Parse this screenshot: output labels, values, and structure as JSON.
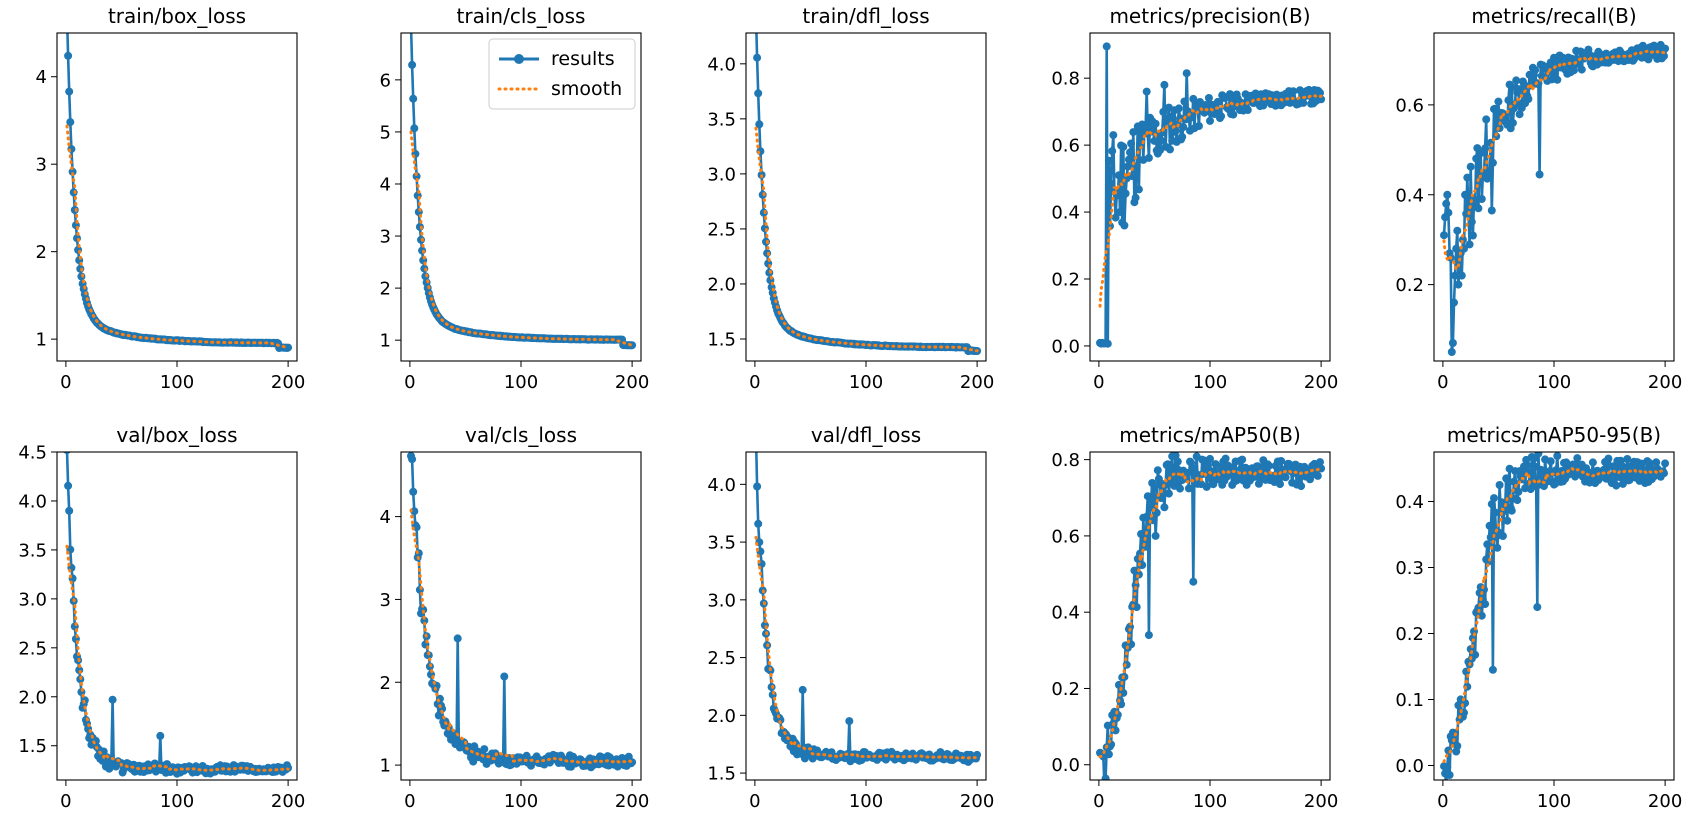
{
  "figure": {
    "legend_results": "results",
    "legend_smooth": "smooth"
  },
  "chart_data": [
    {
      "type": "line",
      "title": "train/box_loss",
      "xlim": [
        -8,
        208
      ],
      "ylim": [
        0.75,
        4.5
      ],
      "xticks": [
        0,
        100,
        200
      ],
      "xtick_labels": [
        "0",
        "100",
        "200"
      ],
      "yticks": [
        1,
        2,
        3,
        4
      ],
      "ytick_labels": [
        "1",
        "2",
        "3",
        "4"
      ],
      "gen": {
        "shape": "decay",
        "start": 4.4,
        "end": 0.95,
        "tail": 0.88,
        "k": 7,
        "noise": 0.008,
        "seed": 3
      },
      "legend": false
    },
    {
      "type": "line",
      "title": "train/cls_loss",
      "xlim": [
        -8,
        208
      ],
      "ylim": [
        0.6,
        6.9
      ],
      "xticks": [
        0,
        100,
        200
      ],
      "xtick_labels": [
        "0",
        "100",
        "200"
      ],
      "yticks": [
        1,
        2,
        3,
        4,
        5,
        6
      ],
      "ytick_labels": [
        "1",
        "2",
        "3",
        "4",
        "5",
        "6"
      ],
      "gen": {
        "shape": "decay",
        "start": 6.55,
        "end": 1.0,
        "tail": 0.86,
        "k": 7,
        "noise": 0.01,
        "seed": 5
      },
      "legend": true,
      "legend_position": "upper right"
    },
    {
      "type": "line",
      "title": "train/dfl_loss",
      "xlim": [
        -8,
        208
      ],
      "ylim": [
        1.3,
        4.28
      ],
      "xticks": [
        0,
        100,
        200
      ],
      "xtick_labels": [
        "0",
        "100",
        "200"
      ],
      "yticks": [
        1.5,
        2.0,
        2.5,
        3.0,
        3.5,
        4.0
      ],
      "ytick_labels": [
        "1.5",
        "2.0",
        "2.5",
        "3.0",
        "3.5",
        "4.0"
      ],
      "gen": {
        "shape": "decay",
        "start": 4.19,
        "end": 1.42,
        "tail": 1.38,
        "k": 7,
        "noise": 0.006,
        "seed": 7
      },
      "legend": false
    },
    {
      "type": "line",
      "title": "metrics/precision(B)",
      "xlim": [
        -8,
        208
      ],
      "ylim": [
        -0.045,
        0.935
      ],
      "xticks": [
        0,
        100,
        200
      ],
      "xtick_labels": [
        "0",
        "100",
        "200"
      ],
      "yticks": [
        0.0,
        0.2,
        0.4,
        0.6,
        0.8
      ],
      "ytick_labels": [
        "0.0",
        "0.2",
        "0.4",
        "0.6",
        "0.8"
      ],
      "gen": {
        "shape": "precision",
        "noise": 0.08,
        "seed": 11
      },
      "legend": false
    },
    {
      "type": "line",
      "title": "metrics/recall(B)",
      "xlim": [
        -8,
        208
      ],
      "ylim": [
        0.03,
        0.76
      ],
      "xticks": [
        0,
        100,
        200
      ],
      "xtick_labels": [
        "0",
        "100",
        "200"
      ],
      "yticks": [
        0.2,
        0.4,
        0.6
      ],
      "ytick_labels": [
        "0.2",
        "0.4",
        "0.6"
      ],
      "gen": {
        "shape": "recall",
        "noise": 0.05,
        "seed": 13
      },
      "legend": false
    },
    {
      "type": "line",
      "title": "val/box_loss",
      "xlim": [
        -8,
        208
      ],
      "ylim": [
        1.15,
        4.5
      ],
      "xticks": [
        0,
        100,
        200
      ],
      "xtick_labels": [
        "0",
        "100",
        "200"
      ],
      "yticks": [
        1.5,
        2.0,
        2.5,
        3.0,
        3.5,
        4.0,
        4.5
      ],
      "ytick_labels": [
        "1.5",
        "2.0",
        "2.5",
        "3.0",
        "3.5",
        "4.0",
        "4.5"
      ],
      "gen": {
        "shape": "valdecay",
        "start": 4.38,
        "end": 1.23,
        "k": 9,
        "noise": 0.06,
        "seed": 17,
        "spikes": [
          [
            42,
            1.97
          ],
          [
            85,
            1.6
          ]
        ]
      },
      "legend": false
    },
    {
      "type": "line",
      "title": "val/cls_loss",
      "xlim": [
        -8,
        208
      ],
      "ylim": [
        0.82,
        4.78
      ],
      "xticks": [
        0,
        100,
        200
      ],
      "xtick_labels": [
        "0",
        "100",
        "200"
      ],
      "yticks": [
        1,
        2,
        3,
        4
      ],
      "ytick_labels": [
        "1",
        "2",
        "3",
        "4"
      ],
      "gen": {
        "shape": "valdecay",
        "start": 4.62,
        "end": 1.0,
        "k": 14,
        "noise": 0.1,
        "seed": 19,
        "spikes": [
          [
            43,
            2.53
          ],
          [
            85,
            2.07
          ]
        ]
      },
      "legend": false
    },
    {
      "type": "line",
      "title": "val/dfl_loss",
      "xlim": [
        -8,
        208
      ],
      "ylim": [
        1.44,
        4.28
      ],
      "xticks": [
        0,
        100,
        200
      ],
      "xtick_labels": [
        "0",
        "100",
        "200"
      ],
      "yticks": [
        1.5,
        2.0,
        2.5,
        3.0,
        3.5,
        4.0
      ],
      "ytick_labels": [
        "1.5",
        "2.0",
        "2.5",
        "3.0",
        "3.5",
        "4.0"
      ],
      "gen": {
        "shape": "valdecay",
        "start": 4.15,
        "end": 1.61,
        "k": 9,
        "noise": 0.06,
        "seed": 23,
        "spikes": [
          [
            43,
            2.22
          ],
          [
            85,
            1.95
          ]
        ]
      },
      "legend": false
    },
    {
      "type": "line",
      "title": "metrics/mAP50(B)",
      "xlim": [
        -8,
        208
      ],
      "ylim": [
        -0.04,
        0.82
      ],
      "xticks": [
        0,
        100,
        200
      ],
      "xtick_labels": [
        "0",
        "100",
        "200"
      ],
      "yticks": [
        0.0,
        0.2,
        0.4,
        0.6,
        0.8
      ],
      "ytick_labels": [
        "0.0",
        "0.2",
        "0.4",
        "0.6",
        "0.8"
      ],
      "gen": {
        "shape": "rise",
        "top": 0.775,
        "mid": 28,
        "w": 9,
        "noise": 0.03,
        "seed": 29,
        "dips": [
          [
            45,
            0.34
          ],
          [
            85,
            0.48
          ]
        ]
      },
      "legend": false
    },
    {
      "type": "line",
      "title": "metrics/mAP50-95(B)",
      "xlim": [
        -8,
        208
      ],
      "ylim": [
        -0.022,
        0.475
      ],
      "xticks": [
        0,
        100,
        200
      ],
      "xtick_labels": [
        "0",
        "100",
        "200"
      ],
      "yticks": [
        0.0,
        0.1,
        0.2,
        0.3,
        0.4
      ],
      "ytick_labels": [
        "0.0",
        "0.1",
        "0.2",
        "0.3",
        "0.4"
      ],
      "gen": {
        "shape": "rise",
        "top": 0.45,
        "mid": 30,
        "w": 10,
        "noise": 0.018,
        "seed": 31,
        "dips": [
          [
            45,
            0.145
          ],
          [
            85,
            0.24
          ]
        ]
      },
      "legend": false
    }
  ]
}
